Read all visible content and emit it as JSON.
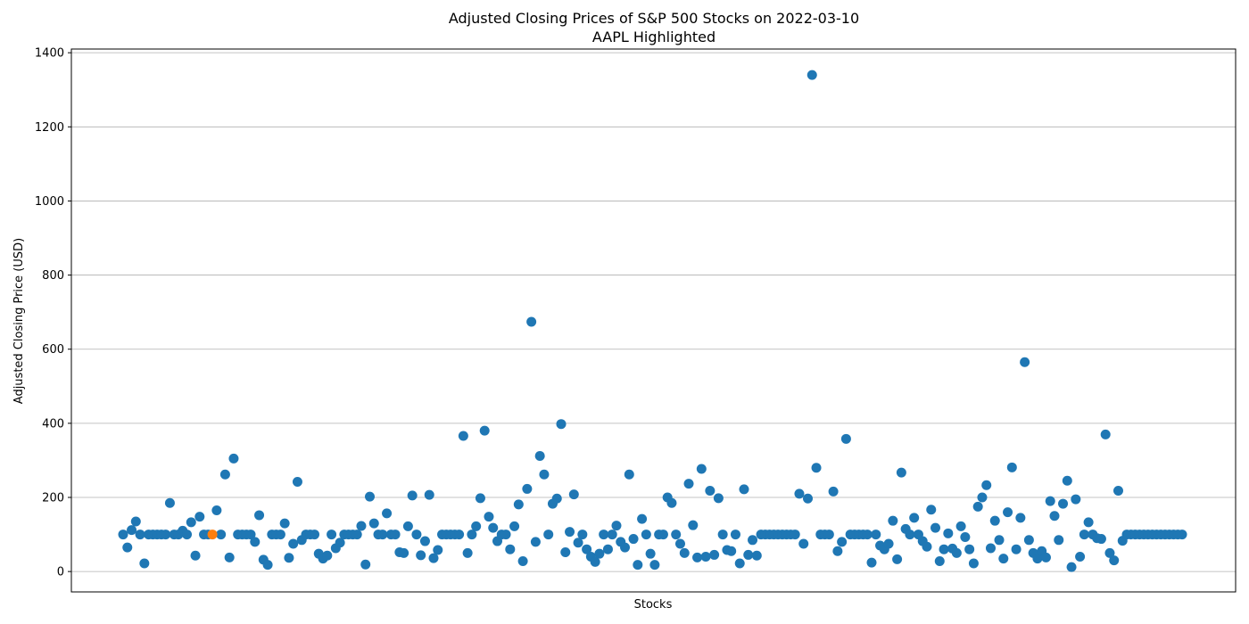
{
  "chart_data": {
    "type": "scatter",
    "title": "Adjusted Closing Prices of S&P 500 Stocks on 2022-03-10",
    "subtitle": "AAPL Highlighted",
    "xlabel": "Stocks",
    "ylabel": "Adjusted Closing Price (USD)",
    "ylim": [
      -55,
      1410
    ],
    "yticks": [
      0,
      200,
      400,
      600,
      800,
      1000,
      1200,
      1400
    ],
    "grid": "y",
    "colors": {
      "default": "#1f77b4",
      "highlight": "#ff7f0e"
    },
    "highlight_index": 21,
    "n_points": 250,
    "baseline_value": 100,
    "outliers": [
      [
        1,
        65
      ],
      [
        2,
        112
      ],
      [
        3,
        135
      ],
      [
        5,
        22
      ],
      [
        8,
        100
      ],
      [
        11,
        185
      ],
      [
        14,
        110
      ],
      [
        16,
        133
      ],
      [
        17,
        43
      ],
      [
        18,
        148
      ],
      [
        21,
        100
      ],
      [
        22,
        165
      ],
      [
        24,
        262
      ],
      [
        25,
        38
      ],
      [
        26,
        305
      ],
      [
        31,
        80
      ],
      [
        32,
        152
      ],
      [
        33,
        32
      ],
      [
        34,
        18
      ],
      [
        38,
        130
      ],
      [
        39,
        37
      ],
      [
        40,
        75
      ],
      [
        41,
        242
      ],
      [
        42,
        85
      ],
      [
        46,
        48
      ],
      [
        47,
        35
      ],
      [
        48,
        43
      ],
      [
        50,
        63
      ],
      [
        51,
        78
      ],
      [
        56,
        123
      ],
      [
        57,
        19
      ],
      [
        58,
        202
      ],
      [
        59,
        130
      ],
      [
        62,
        157
      ],
      [
        65,
        52
      ],
      [
        66,
        50
      ],
      [
        67,
        122
      ],
      [
        68,
        205
      ],
      [
        70,
        44
      ],
      [
        71,
        82
      ],
      [
        72,
        207
      ],
      [
        73,
        36
      ],
      [
        74,
        58
      ],
      [
        80,
        366
      ],
      [
        81,
        50
      ],
      [
        83,
        122
      ],
      [
        84,
        198
      ],
      [
        85,
        380
      ],
      [
        86,
        148
      ],
      [
        87,
        118
      ],
      [
        88,
        82
      ],
      [
        91,
        60
      ],
      [
        92,
        122
      ],
      [
        93,
        181
      ],
      [
        94,
        28
      ],
      [
        95,
        223
      ],
      [
        96,
        674
      ],
      [
        97,
        80
      ],
      [
        98,
        312
      ],
      [
        99,
        262
      ],
      [
        101,
        183
      ],
      [
        102,
        197
      ],
      [
        103,
        398
      ],
      [
        104,
        52
      ],
      [
        105,
        107
      ],
      [
        106,
        208
      ],
      [
        107,
        78
      ],
      [
        109,
        60
      ],
      [
        110,
        40
      ],
      [
        111,
        26
      ],
      [
        112,
        48
      ],
      [
        114,
        60
      ],
      [
        116,
        124
      ],
      [
        117,
        80
      ],
      [
        118,
        65
      ],
      [
        119,
        262
      ],
      [
        120,
        88
      ],
      [
        121,
        18
      ],
      [
        122,
        142
      ],
      [
        124,
        48
      ],
      [
        125,
        18
      ],
      [
        126,
        100
      ],
      [
        128,
        200
      ],
      [
        129,
        185
      ],
      [
        131,
        75
      ],
      [
        132,
        50
      ],
      [
        133,
        237
      ],
      [
        134,
        125
      ],
      [
        135,
        38
      ],
      [
        136,
        277
      ],
      [
        137,
        40
      ],
      [
        138,
        218
      ],
      [
        139,
        45
      ],
      [
        140,
        198
      ],
      [
        142,
        58
      ],
      [
        143,
        55
      ],
      [
        145,
        22
      ],
      [
        146,
        222
      ],
      [
        147,
        45
      ],
      [
        148,
        85
      ],
      [
        149,
        43
      ],
      [
        159,
        210
      ],
      [
        160,
        75
      ],
      [
        161,
        197
      ],
      [
        162,
        1340
      ],
      [
        163,
        280
      ],
      [
        167,
        216
      ],
      [
        168,
        55
      ],
      [
        169,
        80
      ],
      [
        170,
        358
      ],
      [
        176,
        24
      ],
      [
        178,
        70
      ],
      [
        179,
        60
      ],
      [
        180,
        75
      ],
      [
        181,
        137
      ],
      [
        182,
        33
      ],
      [
        183,
        267
      ],
      [
        184,
        115
      ],
      [
        186,
        145
      ],
      [
        188,
        82
      ],
      [
        189,
        67
      ],
      [
        190,
        167
      ],
      [
        191,
        118
      ],
      [
        192,
        28
      ],
      [
        193,
        60
      ],
      [
        194,
        103
      ],
      [
        195,
        62
      ],
      [
        196,
        50
      ],
      [
        197,
        122
      ],
      [
        198,
        93
      ],
      [
        199,
        60
      ],
      [
        200,
        22
      ],
      [
        201,
        175
      ],
      [
        202,
        200
      ],
      [
        203,
        233
      ],
      [
        204,
        63
      ],
      [
        205,
        137
      ],
      [
        206,
        85
      ],
      [
        207,
        35
      ],
      [
        208,
        160
      ],
      [
        209,
        281
      ],
      [
        210,
        60
      ],
      [
        211,
        145
      ],
      [
        212,
        565
      ],
      [
        213,
        85
      ],
      [
        214,
        50
      ],
      [
        215,
        35
      ],
      [
        216,
        55
      ],
      [
        217,
        38
      ],
      [
        218,
        190
      ],
      [
        219,
        150
      ],
      [
        220,
        85
      ],
      [
        221,
        183
      ],
      [
        222,
        245
      ],
      [
        223,
        12
      ],
      [
        224,
        195
      ],
      [
        225,
        40
      ],
      [
        227,
        133
      ],
      [
        228,
        100
      ],
      [
        229,
        90
      ],
      [
        230,
        88
      ],
      [
        231,
        370
      ],
      [
        232,
        50
      ],
      [
        233,
        30
      ],
      [
        234,
        218
      ],
      [
        235,
        83
      ]
    ]
  }
}
